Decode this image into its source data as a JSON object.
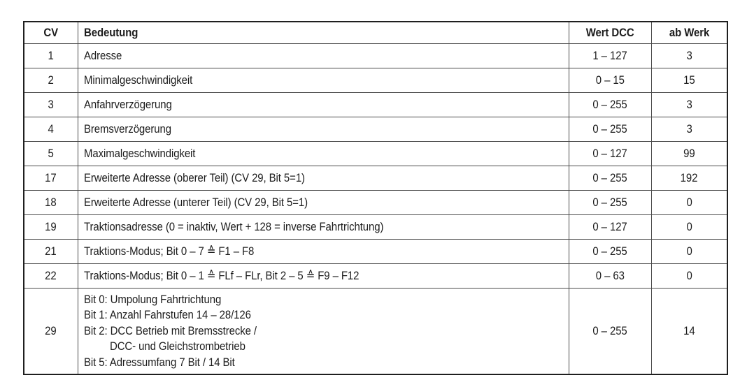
{
  "table": {
    "headers": {
      "cv": "CV",
      "bedeutung": "Bedeutung",
      "wert_dcc": "Wert DCC",
      "ab_werk": "ab Werk"
    },
    "rows": [
      {
        "cv": "1",
        "bedeutung": "Adresse",
        "wert": "1 – 127",
        "werk": "3"
      },
      {
        "cv": "2",
        "bedeutung": "Minimalgeschwindigkeit",
        "wert": "0 – 15",
        "werk": "15"
      },
      {
        "cv": "3",
        "bedeutung": "Anfahrverzögerung",
        "wert": "0 – 255",
        "werk": "3"
      },
      {
        "cv": "4",
        "bedeutung": "Bremsverzögerung",
        "wert": "0 – 255",
        "werk": "3"
      },
      {
        "cv": "5",
        "bedeutung": "Maximalgeschwindigkeit",
        "wert": "0 – 127",
        "werk": "99"
      },
      {
        "cv": "17",
        "bedeutung": "Erweiterte Adresse (oberer Teil) (CV 29, Bit 5=1)",
        "wert": "0 – 255",
        "werk": "192"
      },
      {
        "cv": "18",
        "bedeutung": "Erweiterte Adresse (unterer Teil) (CV 29, Bit 5=1)",
        "wert": "0 – 255",
        "werk": "0"
      },
      {
        "cv": "19",
        "bedeutung": "Traktionsadresse (0 = inaktiv, Wert + 128 = inverse Fahrtrichtung)",
        "wert": "0 – 127",
        "werk": "0"
      },
      {
        "cv": "21",
        "bedeutung": "Traktions-Modus; Bit 0 – 7 ≙ F1 – F8",
        "wert": "0 – 255",
        "werk": "0"
      },
      {
        "cv": "22",
        "bedeutung": "Traktions-Modus; Bit 0 – 1 ≙ FLf – FLr, Bit 2 – 5 ≙ F9 – F12",
        "wert": "0 – 63",
        "werk": "0"
      },
      {
        "cv": "29",
        "lines": [
          "Bit 0: Umpolung Fahrtrichtung",
          "Bit 1: Anzahl Fahrstufen 14 – 28/126",
          "Bit 2: DCC Betrieb mit Bremsstrecke /",
          "DCC- und Gleichstrombetrieb",
          "Bit 5: Adressumfang 7 Bit / 14 Bit"
        ],
        "wert": "0 – 255",
        "werk": "14"
      }
    ]
  }
}
